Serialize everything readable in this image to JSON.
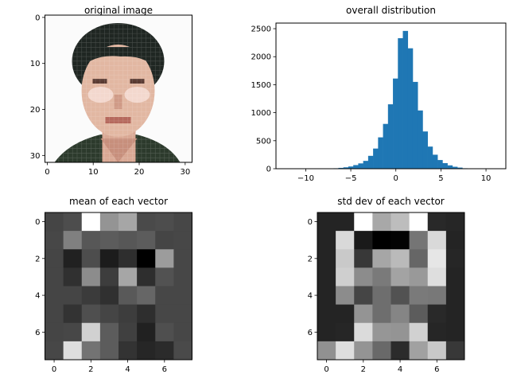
{
  "chart_data": [
    {
      "type": "image",
      "title": "original image",
      "description": "32x32 pixel image of a face",
      "xticks": [
        0,
        10,
        20,
        30
      ],
      "yticks": [
        0,
        10,
        20,
        30
      ],
      "xlim": [
        -0.5,
        31.5
      ],
      "ylim": [
        31.5,
        -0.5
      ],
      "colors": {
        "skin": "#e2b7a2",
        "hair": "#1f2622",
        "bg": "#fbfbfb",
        "shirt": "#2c3a2c"
      }
    },
    {
      "type": "bar",
      "title": "overall distribution",
      "xlabel": "",
      "ylabel": "",
      "xlim": [
        -13.3,
        12.2
      ],
      "ylim": [
        0,
        2600
      ],
      "xticks": [
        -10,
        -5,
        0,
        5,
        10
      ],
      "yticks": [
        0,
        500,
        1000,
        1500,
        2000,
        2500
      ],
      "bin_width": 0.55,
      "bin_centers": [
        -7.2,
        -6.65,
        -6.1,
        -5.55,
        -5.0,
        -4.45,
        -3.9,
        -3.35,
        -2.8,
        -2.25,
        -1.7,
        -1.15,
        -0.6,
        -0.05,
        0.5,
        1.05,
        1.6,
        2.15,
        2.7,
        3.25,
        3.8,
        4.35,
        4.9,
        5.45,
        6.0,
        6.55,
        7.1,
        7.65
      ],
      "values": [
        5,
        8,
        15,
        25,
        40,
        65,
        95,
        140,
        230,
        360,
        560,
        800,
        1150,
        1610,
        2330,
        2460,
        2150,
        1550,
        1040,
        665,
        395,
        250,
        155,
        100,
        60,
        35,
        20,
        8
      ],
      "bar_color": "#1f77b4"
    },
    {
      "type": "heatmap",
      "title": "mean of each vector",
      "colormap": "gray",
      "xticks": [
        0,
        2,
        4,
        6
      ],
      "yticks": [
        0,
        2,
        4,
        6
      ],
      "values": [
        [
          0.27,
          0.3,
          1.0,
          0.58,
          0.65,
          0.29,
          0.3,
          0.28
        ],
        [
          0.28,
          0.5,
          0.34,
          0.36,
          0.34,
          0.36,
          0.27,
          0.28
        ],
        [
          0.27,
          0.13,
          0.3,
          0.11,
          0.18,
          0.0,
          0.61,
          0.28
        ],
        [
          0.27,
          0.19,
          0.55,
          0.24,
          0.65,
          0.18,
          0.32,
          0.28
        ],
        [
          0.27,
          0.27,
          0.23,
          0.19,
          0.35,
          0.4,
          0.28,
          0.28
        ],
        [
          0.27,
          0.2,
          0.31,
          0.27,
          0.24,
          0.18,
          0.28,
          0.28
        ],
        [
          0.27,
          0.28,
          0.82,
          0.36,
          0.25,
          0.13,
          0.31,
          0.28
        ],
        [
          0.28,
          0.87,
          0.45,
          0.36,
          0.2,
          0.15,
          0.17,
          0.29
        ]
      ]
    },
    {
      "type": "heatmap",
      "title": "std dev of each vector",
      "colormap": "gray",
      "xticks": [
        0,
        2,
        4,
        6
      ],
      "yticks": [
        0,
        2,
        4,
        6
      ],
      "values": [
        [
          0.14,
          0.14,
          1.0,
          0.66,
          0.74,
          1.0,
          0.16,
          0.15
        ],
        [
          0.14,
          0.85,
          0.1,
          0.0,
          0.01,
          0.46,
          0.85,
          0.14
        ],
        [
          0.14,
          0.79,
          0.22,
          0.65,
          0.73,
          0.4,
          0.9,
          0.15
        ],
        [
          0.14,
          0.81,
          0.55,
          0.48,
          0.64,
          0.6,
          0.87,
          0.14
        ],
        [
          0.14,
          0.55,
          0.27,
          0.43,
          0.32,
          0.48,
          0.47,
          0.14
        ],
        [
          0.14,
          0.14,
          0.58,
          0.43,
          0.52,
          0.36,
          0.16,
          0.14
        ],
        [
          0.14,
          0.15,
          0.86,
          0.59,
          0.58,
          0.82,
          0.15,
          0.14
        ],
        [
          0.57,
          0.87,
          0.58,
          0.41,
          0.17,
          0.63,
          0.79,
          0.22
        ]
      ]
    }
  ]
}
